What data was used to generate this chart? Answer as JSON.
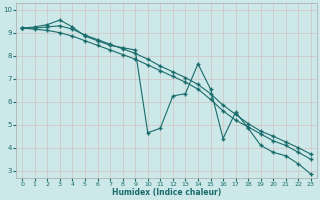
{
  "xlabel": "Humidex (Indice chaleur)",
  "bg_color": "#cce8e8",
  "grid_color": "#d0c8c8",
  "line_color": "#1a6b6b",
  "xlim": [
    -0.5,
    23.5
  ],
  "ylim": [
    2.7,
    10.3
  ],
  "yticks": [
    3,
    4,
    5,
    6,
    7,
    8,
    9,
    10
  ],
  "xticks": [
    0,
    1,
    2,
    3,
    4,
    5,
    6,
    7,
    8,
    9,
    10,
    11,
    12,
    13,
    14,
    15,
    16,
    17,
    18,
    19,
    20,
    21,
    22,
    23
  ],
  "series1_x": [
    0,
    1,
    2,
    3,
    4,
    5,
    6,
    7,
    8,
    9,
    10,
    11,
    12,
    13,
    14,
    15,
    16,
    17,
    18,
    19,
    20,
    21,
    22,
    23
  ],
  "series1_y": [
    9.2,
    9.25,
    9.35,
    9.55,
    9.25,
    8.85,
    8.65,
    8.45,
    8.35,
    8.25,
    4.65,
    4.85,
    6.25,
    6.35,
    7.65,
    6.55,
    4.4,
    5.55,
    4.85,
    4.1,
    3.8,
    3.65,
    3.3,
    2.85
  ],
  "series2_x": [
    0,
    1,
    2,
    3,
    4,
    5,
    6,
    7,
    8,
    9,
    10,
    11,
    12,
    13,
    14,
    15,
    16,
    17,
    18,
    19,
    20,
    21,
    22,
    23
  ],
  "series2_y": [
    9.2,
    9.2,
    9.25,
    9.3,
    9.15,
    8.9,
    8.7,
    8.5,
    8.3,
    8.1,
    7.85,
    7.55,
    7.3,
    7.05,
    6.75,
    6.35,
    5.85,
    5.45,
    5.05,
    4.72,
    4.5,
    4.25,
    4.0,
    3.72
  ],
  "series3_x": [
    0,
    1,
    2,
    3,
    4,
    5,
    6,
    7,
    8,
    9,
    10,
    11,
    12,
    13,
    14,
    15,
    16,
    17,
    18,
    19,
    20,
    21,
    22,
    23
  ],
  "series3_y": [
    9.2,
    9.15,
    9.1,
    9.0,
    8.85,
    8.65,
    8.45,
    8.25,
    8.05,
    7.85,
    7.6,
    7.35,
    7.1,
    6.85,
    6.55,
    6.1,
    5.6,
    5.2,
    4.9,
    4.6,
    4.3,
    4.1,
    3.8,
    3.5
  ]
}
